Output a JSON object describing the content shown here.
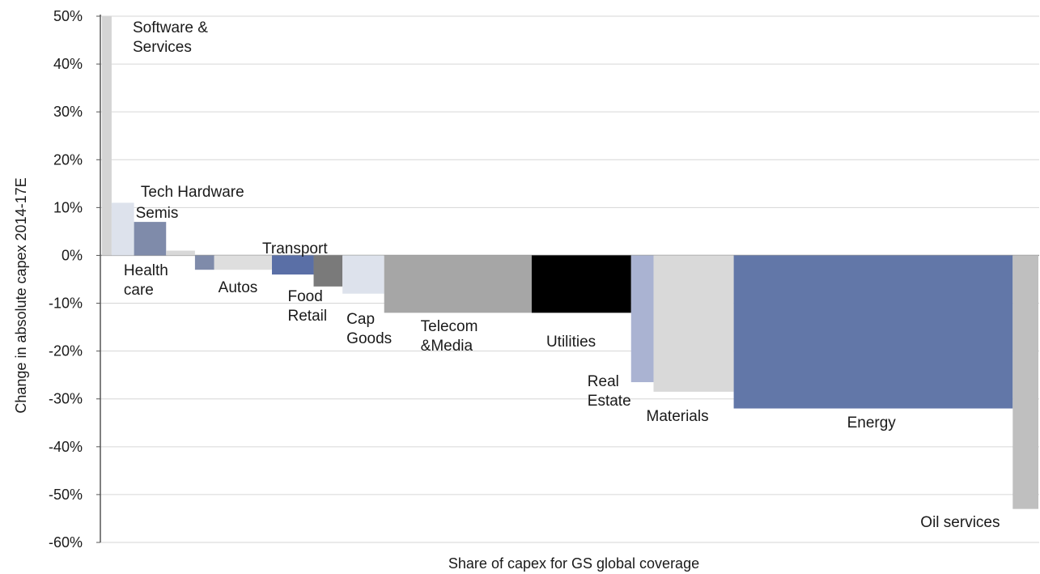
{
  "chart_data": {
    "type": "bar",
    "xlabel": "Share of capex for GS global coverage",
    "ylabel": "Change in absolute capex 2014-17E",
    "ylim": [
      -60,
      50
    ],
    "yticks": [
      50,
      40,
      30,
      20,
      10,
      0,
      -10,
      -20,
      -30,
      -40,
      -50,
      -60
    ],
    "ytick_labels": [
      "50%",
      "40%",
      "30%",
      "20%",
      "10%",
      "0%",
      "-10%",
      "-20%",
      "-30%",
      "-40%",
      "-50%",
      "-60%"
    ],
    "grid": true,
    "series": [
      {
        "category": "Software & Services",
        "label_lines": [
          "Software &",
          "Services"
        ],
        "share": 0.3,
        "value": 50,
        "color": "#d4d4d4"
      },
      {
        "category": "Tech Hardware",
        "label_lines": [
          "Tech Hardware"
        ],
        "share": 0.7,
        "value": 11,
        "color": "#dde2ec"
      },
      {
        "category": "Semis",
        "label_lines": [
          "Semis"
        ],
        "share": 1.0,
        "value": 7,
        "color": "#7f8baa"
      },
      {
        "category": "Health care (upper)",
        "label_lines": [],
        "share": 0.9,
        "value": 1,
        "color": "#d8d8d8"
      },
      {
        "category": "Health care",
        "label_lines": [
          "Health",
          "care"
        ],
        "share": 0.6,
        "value": -3,
        "color": "#7f8baa"
      },
      {
        "category": "Autos",
        "label_lines": [
          "Autos"
        ],
        "share": 1.8,
        "value": -3,
        "color": "#dedede"
      },
      {
        "category": "Transport",
        "label_lines": [
          "Transport"
        ],
        "share": 1.3,
        "value": -4,
        "color": "#5a6fa6"
      },
      {
        "category": "Food Retail",
        "label_lines": [
          "Food",
          "Retail"
        ],
        "share": 0.9,
        "value": -6.5,
        "color": "#7a7a7a"
      },
      {
        "category": "Cap Goods",
        "label_lines": [
          "Cap",
          "Goods"
        ],
        "share": 1.3,
        "value": -8,
        "color": "#dde2ec"
      },
      {
        "category": "Telecom &Media",
        "label_lines": [
          "Telecom",
          "&Media"
        ],
        "share": 4.6,
        "value": -12,
        "color": "#a6a6a6"
      },
      {
        "category": "Utilities",
        "label_lines": [
          "Utilities"
        ],
        "share": 3.1,
        "value": -12,
        "color": "#000000"
      },
      {
        "category": "Real Estate",
        "label_lines": [
          "Real",
          "Estate"
        ],
        "share": 0.7,
        "value": -26.5,
        "color": "#aab3d2"
      },
      {
        "category": "Materials",
        "label_lines": [
          "Materials"
        ],
        "share": 2.5,
        "value": -28.5,
        "color": "#d9d9d9"
      },
      {
        "category": "Energy",
        "label_lines": [
          "Energy"
        ],
        "share": 8.7,
        "value": -32,
        "color": "#6277a8"
      },
      {
        "category": "Oil services",
        "label_lines": [
          "Oil services"
        ],
        "share": 0.8,
        "value": -53,
        "color": "#bfbfbf"
      }
    ]
  }
}
